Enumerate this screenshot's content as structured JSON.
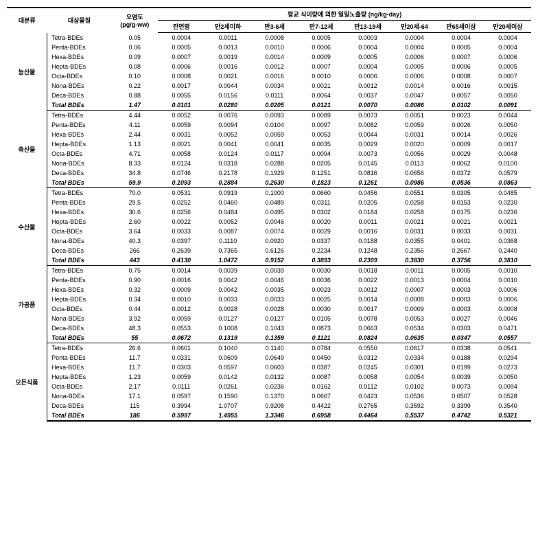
{
  "headers": {
    "category": "대분류",
    "substance": "대상물질",
    "contamination": "오염도",
    "contamination_unit": "(pg/g-ww)",
    "exposure_group": "평균 식이량에 의한 일일노출량 (ng/kg-day)",
    "cols": [
      "전연령",
      "만2세이하",
      "만3-6세",
      "만7-12세",
      "만13-19세",
      "만20세-64",
      "만65세이상",
      "만20세이상"
    ]
  },
  "groups": [
    {
      "name": "농산물",
      "rows": [
        {
          "s": "Tetra-BDEs",
          "c": "0.05",
          "v": [
            "0.0004",
            "0.0011",
            "0.0008",
            "0.0005",
            "0.0003",
            "0.0004",
            "0.0004",
            "0.0004"
          ]
        },
        {
          "s": "Penta-BDEs",
          "c": "0.06",
          "v": [
            "0.0005",
            "0.0013",
            "0.0010",
            "0.0006",
            "0.0004",
            "0.0004",
            "0.0005",
            "0.0004"
          ]
        },
        {
          "s": "Hexa-BDEs",
          "c": "0.09",
          "v": [
            "0.0007",
            "0.0019",
            "0.0014",
            "0.0009",
            "0.0005",
            "0.0006",
            "0.0007",
            "0.0006"
          ]
        },
        {
          "s": "Hepta-BDEs",
          "c": "0.08",
          "v": [
            "0.0006",
            "0.0016",
            "0.0012",
            "0.0007",
            "0.0004",
            "0.0005",
            "0.0006",
            "0.0005"
          ]
        },
        {
          "s": "Octa-BDEs",
          "c": "0.10",
          "v": [
            "0.0008",
            "0.0021",
            "0.0016",
            "0.0010",
            "0.0006",
            "0.0006",
            "0.0008",
            "0.0007"
          ]
        },
        {
          "s": "Nona-BDEs",
          "c": "0.22",
          "v": [
            "0.0017",
            "0.0044",
            "0.0034",
            "0.0021",
            "0.0012",
            "0.0014",
            "0.0016",
            "0.0015"
          ]
        },
        {
          "s": "Deca-BDEs",
          "c": "0.88",
          "v": [
            "0.0055",
            "0.0156",
            "0.0111",
            "0.0064",
            "0.0037",
            "0.0047",
            "0.0057",
            "0.0050"
          ]
        }
      ],
      "total": {
        "s": "Total BDEs",
        "c": "1.47",
        "v": [
          "0.0101",
          "0.0280",
          "0.0205",
          "0.0121",
          "0.0070",
          "0.0086",
          "0.0102",
          "0.0091"
        ]
      }
    },
    {
      "name": "축산물",
      "rows": [
        {
          "s": "Tetra-BDEs",
          "c": "4.44",
          "v": [
            "0.0052",
            "0.0076",
            "0.0093",
            "0.0089",
            "0.0073",
            "0.0051",
            "0.0023",
            "0.0044"
          ]
        },
        {
          "s": "Penta-BDEs",
          "c": "4.11",
          "v": [
            "0.0059",
            "0.0094",
            "0.0104",
            "0.0097",
            "0.0082",
            "0.0059",
            "0.0026",
            "0.0050"
          ]
        },
        {
          "s": "Hexa-BDEs",
          "c": "2.44",
          "v": [
            "0.0031",
            "0.0052",
            "0.0059",
            "0.0053",
            "0.0044",
            "0.0031",
            "0.0014",
            "0.0026"
          ]
        },
        {
          "s": "Hepta-BDEs",
          "c": "1.13",
          "v": [
            "0.0021",
            "0.0041",
            "0.0041",
            "0.0035",
            "0.0029",
            "0.0020",
            "0.0009",
            "0.0017"
          ]
        },
        {
          "s": "Octa-BDEs",
          "c": "4.71",
          "v": [
            "0.0058",
            "0.0124",
            "0.0117",
            "0.0094",
            "0.0073",
            "0.0056",
            "0.0029",
            "0.0048"
          ]
        },
        {
          "s": "Nona-BDEs",
          "c": "8.33",
          "v": [
            "0.0124",
            "0.0318",
            "0.0288",
            "0.0205",
            "0.0145",
            "0.0113",
            "0.0062",
            "0.0100"
          ]
        },
        {
          "s": "Deca-BDEs",
          "c": "34.8",
          "v": [
            "0.0746",
            "0.2178",
            "0.1929",
            "0.1251",
            "0.0816",
            "0.0656",
            "0.0372",
            "0.0579"
          ]
        }
      ],
      "total": {
        "s": "Total BDEs",
        "c": "59.9",
        "v": [
          "0.1093",
          "0.2884",
          "0.2630",
          "0.1823",
          "0.1261",
          "0.0986",
          "0.0536",
          "0.0863"
        ]
      }
    },
    {
      "name": "수산물",
      "rows": [
        {
          "s": "Tetra-BDEs",
          "c": "70.0",
          "v": [
            "0.0531",
            "0.0919",
            "0.1000",
            "0.0660",
            "0.0456",
            "0.0551",
            "0.0305",
            "0.0485"
          ]
        },
        {
          "s": "Penta-BDEs",
          "c": "29.5",
          "v": [
            "0.0252",
            "0.0460",
            "0.0489",
            "0.0311",
            "0.0205",
            "0.0258",
            "0.0153",
            "0.0230"
          ]
        },
        {
          "s": "Hexa-BDEs",
          "c": "30.6",
          "v": [
            "0.0256",
            "0.0484",
            "0.0495",
            "0.0302",
            "0.0184",
            "0.0258",
            "0.0175",
            "0.0236"
          ]
        },
        {
          "s": "Hepta-BDEs",
          "c": "2.60",
          "v": [
            "0.0022",
            "0.0052",
            "0.0046",
            "0.0020",
            "0.0011",
            "0.0021",
            "0.0021",
            "0.0021"
          ]
        },
        {
          "s": "Octa-BDEs",
          "c": "3.64",
          "v": [
            "0.0033",
            "0.0087",
            "0.0074",
            "0.0029",
            "0.0016",
            "0.0031",
            "0.0033",
            "0.0031"
          ]
        },
        {
          "s": "Nona-BDEs",
          "c": "40.3",
          "v": [
            "0.0397",
            "0.1110",
            "0.0920",
            "0.0337",
            "0.0188",
            "0.0355",
            "0.0401",
            "0.0368"
          ]
        },
        {
          "s": "Deca-BDEs",
          "c": "266",
          "v": [
            "0.2639",
            "0.7365",
            "0.6126",
            "0.2234",
            "0.1248",
            "0.2356",
            "0.2667",
            "0.2440"
          ]
        }
      ],
      "total": {
        "s": "Total BDEs",
        "c": "443",
        "v": [
          "0.4130",
          "1.0472",
          "0.9152",
          "0.3893",
          "0.2309",
          "0.3830",
          "0.3756",
          "0.3810"
        ]
      }
    },
    {
      "name": "가공품",
      "rows": [
        {
          "s": "Tetra-BDEs",
          "c": "0.75",
          "v": [
            "0.0014",
            "0.0039",
            "0.0039",
            "0.0030",
            "0.0018",
            "0.0011",
            "0.0005",
            "0.0010"
          ]
        },
        {
          "s": "Penta-BDEs",
          "c": "0.90",
          "v": [
            "0.0016",
            "0.0042",
            "0.0046",
            "0.0036",
            "0.0022",
            "0.0013",
            "0.0004",
            "0.0010"
          ]
        },
        {
          "s": "Hexa-BDEs",
          "c": "0.32",
          "v": [
            "0.0009",
            "0.0042",
            "0.0035",
            "0.0023",
            "0.0012",
            "0.0007",
            "0.0003",
            "0.0006"
          ]
        },
        {
          "s": "Hepta-BDEs",
          "c": "0.34",
          "v": [
            "0.0010",
            "0.0033",
            "0.0033",
            "0.0025",
            "0.0014",
            "0.0008",
            "0.0003",
            "0.0006"
          ]
        },
        {
          "s": "Octa-BDEs",
          "c": "0.44",
          "v": [
            "0.0012",
            "0.0028",
            "0.0028",
            "0.0030",
            "0.0017",
            "0.0009",
            "0.0003",
            "0.0008"
          ]
        },
        {
          "s": "Nona-BDEs",
          "c": "3.92",
          "v": [
            "0.0059",
            "0.0127",
            "0.0127",
            "0.0105",
            "0.0078",
            "0.0053",
            "0.0027",
            "0.0046"
          ]
        },
        {
          "s": "Deca-BDEs",
          "c": "48.3",
          "v": [
            "0.0553",
            "0.1008",
            "0.1043",
            "0.0873",
            "0.0663",
            "0.0534",
            "0.0303",
            "0.0471"
          ]
        }
      ],
      "total": {
        "s": "Total BDEs",
        "c": "55",
        "v": [
          "0.0672",
          "0.1319",
          "0.1359",
          "0.1121",
          "0.0824",
          "0.0635",
          "0.0347",
          "0.0557"
        ]
      }
    },
    {
      "name": "모든식품",
      "rows": [
        {
          "s": "Tetra-BDEs",
          "c": "26.6",
          "v": [
            "0.0601",
            "0.1040",
            "0.1140",
            "0.0784",
            "0.0550",
            "0.0617",
            "0.0338",
            "0.0541"
          ]
        },
        {
          "s": "Penta-BDEs",
          "c": "11.7",
          "v": [
            "0.0331",
            "0.0609",
            "0.0649",
            "0.0450",
            "0.0312",
            "0.0334",
            "0.0188",
            "0.0294"
          ]
        },
        {
          "s": "Hexa-BDEs",
          "c": "11.7",
          "v": [
            "0.0303",
            "0.0597",
            "0.0603",
            "0.0387",
            "0.0245",
            "0.0301",
            "0.0199",
            "0.0273"
          ]
        },
        {
          "s": "Hepta-BDEs",
          "c": "1.23",
          "v": [
            "0.0059",
            "0.0142",
            "0.0132",
            "0.0087",
            "0.0058",
            "0.0054",
            "0.0039",
            "0.0050"
          ]
        },
        {
          "s": "Octa-BDEs",
          "c": "2.17",
          "v": [
            "0.0111",
            "0.0261",
            "0.0236",
            "0.0162",
            "0.0112",
            "0.0102",
            "0.0073",
            "0.0094"
          ]
        },
        {
          "s": "Nona-BDEs",
          "c": "17.1",
          "v": [
            "0.0597",
            "0.1590",
            "0.1370",
            "0.0667",
            "0.0423",
            "0.0536",
            "0.0507",
            "0.0528"
          ]
        },
        {
          "s": "Deca-BDEs",
          "c": "115",
          "v": [
            "0.3994",
            "1.0707",
            "0.9208",
            "0.4422",
            "0.2765",
            "0.3592",
            "0.3399",
            "0.3540"
          ]
        }
      ],
      "total": {
        "s": "Total BDEs",
        "c": "186",
        "v": [
          "0.5997",
          "1.4955",
          "1.3346",
          "0.6958",
          "0.4464",
          "0.5537",
          "0.4742",
          "0.5321"
        ]
      }
    }
  ]
}
